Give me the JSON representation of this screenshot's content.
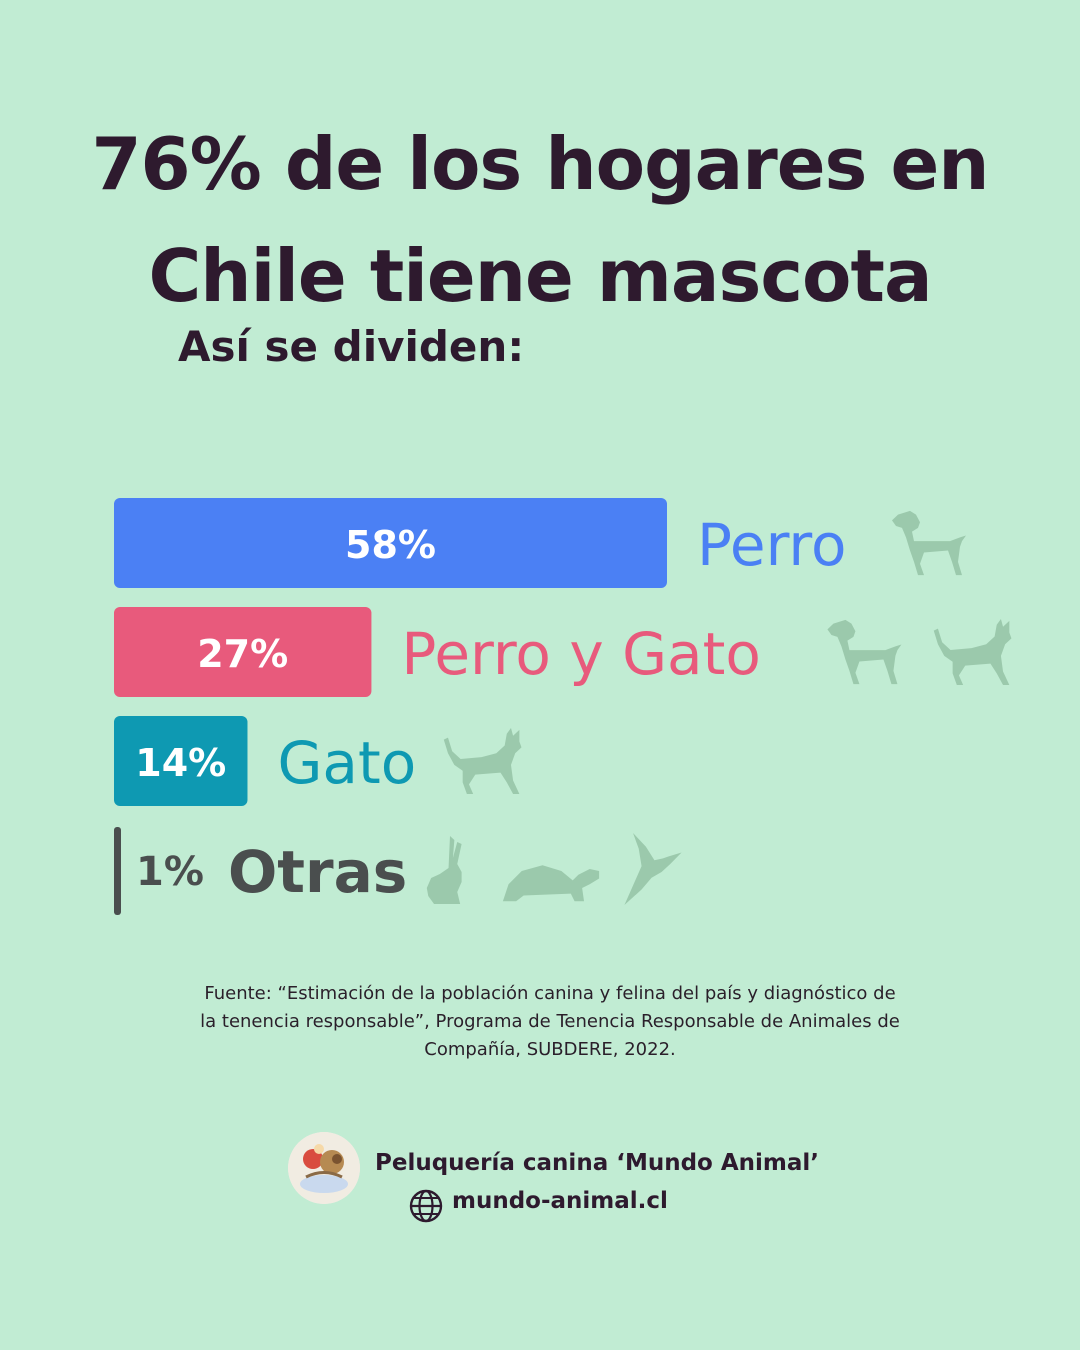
{
  "title": {
    "line1": "76% de los hogares en",
    "line2": "Chile tiene mascota"
  },
  "subtitle": "Así se dividen:",
  "chart_data": {
    "type": "bar",
    "orientation": "horizontal",
    "categories": [
      "Perro",
      "Perro y Gato",
      "Gato",
      "Otras"
    ],
    "values": [
      58,
      27,
      14,
      1
    ],
    "value_labels": [
      "58%",
      "27%",
      "14%",
      "1%"
    ],
    "colors": [
      "#4b80f4",
      "#e85a7c",
      "#0e99b2",
      "#4a4e4e"
    ],
    "icons": [
      [
        "dog-icon"
      ],
      [
        "dog-icon",
        "cat-icon"
      ],
      [
        "cat-icon"
      ],
      [
        "rabbit-icon",
        "turtle-icon",
        "hummingbird-icon"
      ]
    ],
    "icon_color": "#9bc9ac",
    "grid": false
  },
  "source": {
    "text": "Fuente: “Estimación de la población canina y felina del país y diagnóstico de la tenencia responsable”, Programa de Tenencia Responsable de Animales de Compañía, SUBDERE, 2022."
  },
  "footer": {
    "brand": "Peluquería canina ‘Mundo Animal’",
    "website": "mundo-animal.cl",
    "logo_icon": "dog-grooming-logo-icon",
    "web_icon": "globe-icon"
  }
}
